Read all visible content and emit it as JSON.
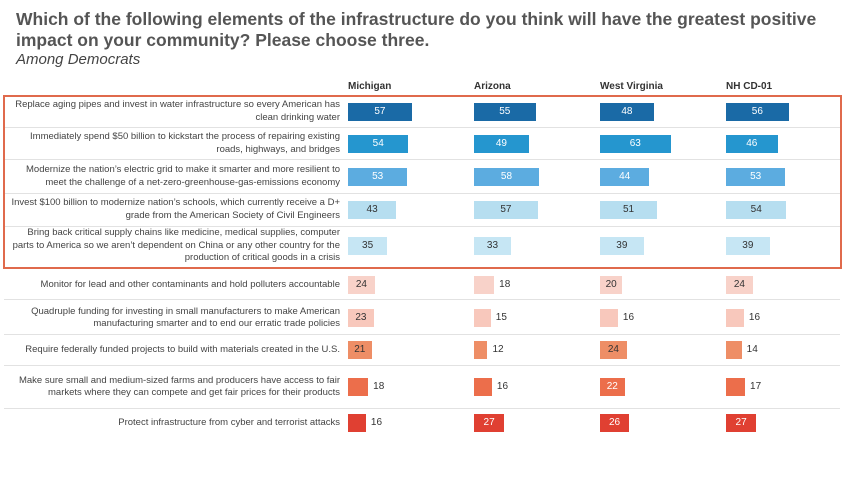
{
  "title": "Which of the following elements of the infrastructure do you think will have the greatest positive impact on your community? Please choose three.",
  "subtitle": "Among Democrats",
  "chart_data": {
    "type": "bar",
    "orientation": "horizontal",
    "series": [
      {
        "name": "Michigan",
        "values": [
          57,
          54,
          53,
          43,
          35,
          24,
          23,
          21,
          18,
          16
        ]
      },
      {
        "name": "Arizona",
        "values": [
          55,
          49,
          58,
          57,
          33,
          18,
          15,
          12,
          16,
          27
        ]
      },
      {
        "name": "West Virginia",
        "values": [
          48,
          63,
          44,
          51,
          39,
          20,
          16,
          24,
          22,
          26
        ]
      },
      {
        "name": "NH CD-01",
        "values": [
          56,
          46,
          53,
          54,
          39,
          24,
          16,
          14,
          17,
          27
        ]
      }
    ],
    "categories": [
      "Replace aging pipes and invest in water infrastructure so every American has clean drinking water",
      "Immediately spend $50 billion to kickstart the process of repairing existing roads, highways, and bridges",
      "Modernize the nation’s electric grid to make it smarter and more resilient to meet the challenge of a net-zero-greenhouse-gas-emissions economy",
      "Invest $100 billion to modernize nation’s schools, which currently receive a D+ grade from the American Society of Civil Engineers",
      "Bring back critical supply chains like medicine, medical supplies, computer parts to America so we aren’t dependent on China or any other country for the production of critical goods in a crisis",
      "Monitor for lead and other contaminants and hold polluters accountable",
      "Quadruple funding for investing in small manufacturers to make American manufacturing smarter and to end our erratic trade policies",
      "Require federally funded projects to build with materials created in the U.S.",
      "Make sure small and medium-sized farms and producers have access to fair markets where they can compete and get fair prices for their products",
      "Protect infrastructure from cyber and terrorist attacks"
    ],
    "row_colors": [
      "#1a6aa6",
      "#2596cf",
      "#5cace0",
      "#b6def0",
      "#c6e6f4",
      "#f8d2c9",
      "#f8c8bc",
      "#ee8e66",
      "#ec6e4b",
      "#e04032"
    ],
    "row_label_colors": [
      "#ffffff",
      "#ffffff",
      "#ffffff",
      "#333333",
      "#333333",
      "#333333",
      "#333333",
      "#333333",
      "#ffffff",
      "#ffffff"
    ],
    "highlighted_rows": [
      0,
      1,
      2,
      3,
      4
    ],
    "highlight_color": "#e06a4c"
  }
}
